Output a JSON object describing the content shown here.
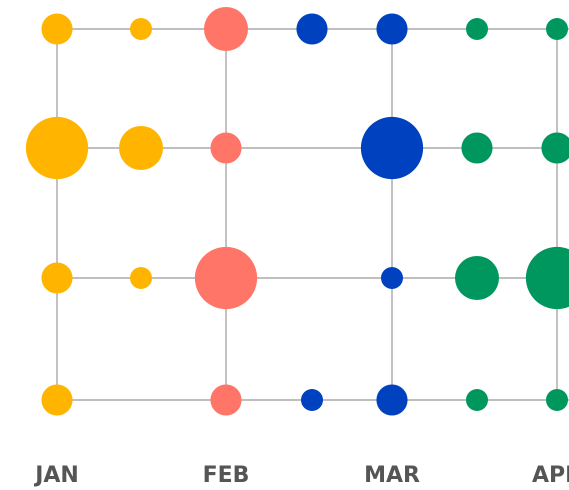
{
  "chart_data": {
    "type": "bubble-grid",
    "categories": [
      "JAN",
      null,
      "FEB",
      null,
      "MAR",
      null,
      "APR"
    ],
    "series": [
      {
        "color": "#FFB400",
        "values": [
          2,
          8,
          2,
          2
        ]
      },
      {
        "color": "#FFB400",
        "values": [
          1,
          4,
          1,
          null
        ]
      },
      {
        "color": "#FF7567",
        "values": [
          4,
          2,
          8,
          2
        ]
      },
      {
        "color": "#0041BF",
        "values": [
          2,
          null,
          null,
          1
        ]
      },
      {
        "color": "#0041BF",
        "values": [
          2,
          8,
          1,
          2
        ]
      },
      {
        "color": "#00975F",
        "values": [
          1,
          2,
          4,
          1
        ]
      },
      {
        "color": "#00975F",
        "values": [
          1,
          2,
          8,
          1
        ]
      }
    ]
  }
}
